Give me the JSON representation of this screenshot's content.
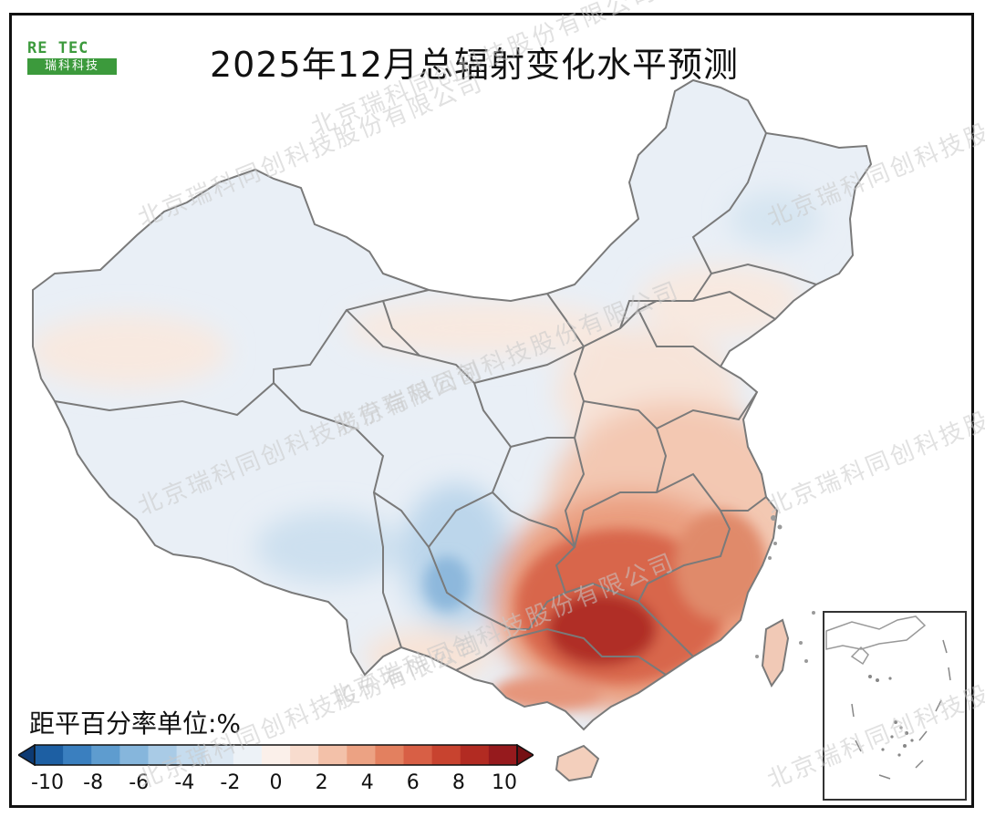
{
  "title": "2025年12月总辐射变化水平预测",
  "logo": {
    "top_text": "RE TEC",
    "bottom_text": "瑞科科技",
    "icon": "windmill-icon",
    "color": "#3c9a3c"
  },
  "watermark": "北京瑞科同创科技股份有限公司",
  "legend": {
    "title": "距平百分率单位:%",
    "ticks": [
      "-10",
      "-8",
      "-6",
      "-4",
      "-2",
      "0",
      "2",
      "4",
      "6",
      "8",
      "10"
    ],
    "colors": [
      "#0d3a73",
      "#1d5fa3",
      "#3a7fbf",
      "#5e9ccf",
      "#86b6dc",
      "#a9cbe6",
      "#c6dcee",
      "#dce8f3",
      "#edf2f7",
      "#fbf0ea",
      "#f8dcce",
      "#f3c1a9",
      "#eca283",
      "#e3805f",
      "#d85f45",
      "#c8432f",
      "#b22b22",
      "#961a1d",
      "#761014"
    ],
    "range": [
      -10,
      10
    ],
    "extend": "both"
  }
}
